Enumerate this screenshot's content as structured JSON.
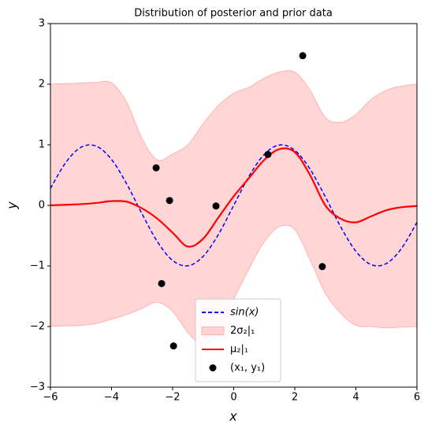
{
  "chart_data": {
    "type": "line",
    "title": "Distribution of posterior and prior data",
    "x_label": "x",
    "y_label": "y",
    "xlim": [
      -6,
      6
    ],
    "ylim": [
      -3,
      3
    ],
    "xticks": [
      {
        "value": -6,
        "label": "−6"
      },
      {
        "value": -4,
        "label": "−4"
      },
      {
        "value": -2,
        "label": "−2"
      },
      0,
      2,
      4,
      6
    ],
    "yticks": [
      {
        "value": -3,
        "label": "−3"
      },
      {
        "value": -2,
        "label": "−2"
      },
      {
        "value": -1,
        "label": "−1"
      },
      0,
      1,
      2,
      3
    ],
    "grid": false,
    "legend": "lower center",
    "x": [
      -6,
      -5.5,
      -5,
      -4.5,
      -4,
      -3.5,
      -3,
      -2.5,
      -2,
      -1.5,
      -1,
      -0.5,
      0,
      0.5,
      1,
      1.5,
      2,
      2.5,
      3,
      3.5,
      4,
      4.5,
      5,
      5.5,
      6
    ],
    "series": [
      {
        "name": "sin(x)",
        "type": "line",
        "style": "dashed",
        "color": "#0000ff",
        "values": [
          0.279,
          0.706,
          0.959,
          0.978,
          0.757,
          0.351,
          -0.141,
          -0.598,
          -0.909,
          -0.997,
          -0.841,
          -0.479,
          0,
          0.479,
          0.841,
          0.997,
          0.909,
          0.598,
          0.141,
          -0.351,
          -0.757,
          -0.978,
          -0.959,
          -0.706,
          -0.279
        ]
      },
      {
        "name": "2σ₂|₁",
        "type": "band",
        "color": "#ffb3b3",
        "upper": [
          2.0,
          2.01,
          2.02,
          2.03,
          2.02,
          1.7,
          1.1,
          0.75,
          0.85,
          1.0,
          1.35,
          1.65,
          1.85,
          1.95,
          2.1,
          2.2,
          2.2,
          1.9,
          1.45,
          1.37,
          1.5,
          1.75,
          1.9,
          1.97,
          2.0
        ],
        "lower": [
          -2.0,
          -1.99,
          -1.98,
          -1.95,
          -1.88,
          -1.8,
          -1.7,
          -1.6,
          -1.75,
          -2.1,
          -2.3,
          -2.1,
          -1.55,
          -1.05,
          -0.6,
          -0.35,
          -0.4,
          -0.9,
          -1.45,
          -1.78,
          -1.98,
          -2.0,
          -2.02,
          -2.01,
          -2.0
        ]
      },
      {
        "name": "μ₂|₁",
        "type": "line",
        "style": "solid",
        "color": "#ff0000",
        "values": [
          0.0,
          0.01,
          0.02,
          0.04,
          0.07,
          0.06,
          -0.05,
          -0.22,
          -0.45,
          -0.68,
          -0.55,
          -0.2,
          0.15,
          0.45,
          0.75,
          0.93,
          0.88,
          0.5,
          0.0,
          -0.22,
          -0.28,
          -0.18,
          -0.08,
          -0.03,
          -0.01
        ]
      },
      {
        "name": "(x₁, y₁)",
        "type": "scatter",
        "color": "#000000",
        "x": [
          2.26,
          -2.54,
          -2.1,
          -0.58,
          1.12,
          2.9,
          -2.36,
          -1.97
        ],
        "values": [
          2.47,
          0.62,
          0.08,
          -0.01,
          0.84,
          -1.01,
          -1.29,
          -2.32
        ]
      }
    ]
  }
}
